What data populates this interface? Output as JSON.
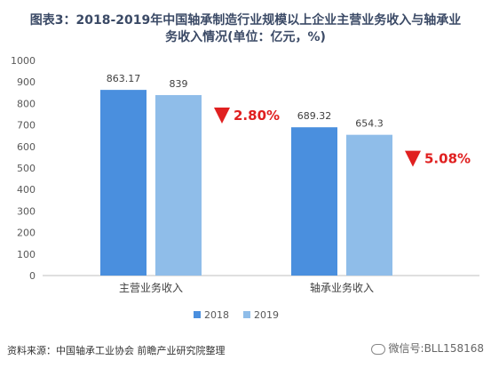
{
  "title_line1": "图表3：2018-2019年中国轴承制造行业规模以上企业主营业务收入与轴承业",
  "title_line2": "务收入情况(单位：亿元，%)",
  "source": "资料来源：中国轴承工业协会 前瞻产业研究院整理",
  "watermark": "微信号:BLL158168",
  "colors": {
    "s2018": "#4a8fde",
    "s2019": "#8fbde9",
    "decline": "#e02020"
  },
  "chart_data": {
    "type": "bar",
    "categories": [
      "主营业务收入",
      "轴承业务收入"
    ],
    "series": [
      {
        "name": "2018",
        "values": [
          863.17,
          689.32
        ]
      },
      {
        "name": "2019",
        "values": [
          839,
          654.3
        ]
      }
    ],
    "value_labels": [
      [
        "863.17",
        "689.32"
      ],
      [
        "839",
        "654.3"
      ]
    ],
    "annotations": [
      "2.80%",
      "5.08%"
    ],
    "ylim": [
      0,
      1000
    ],
    "yticks": [
      0,
      100,
      200,
      300,
      400,
      500,
      600,
      700,
      800,
      900,
      1000
    ],
    "legend": "bottom-center",
    "grid": false
  }
}
